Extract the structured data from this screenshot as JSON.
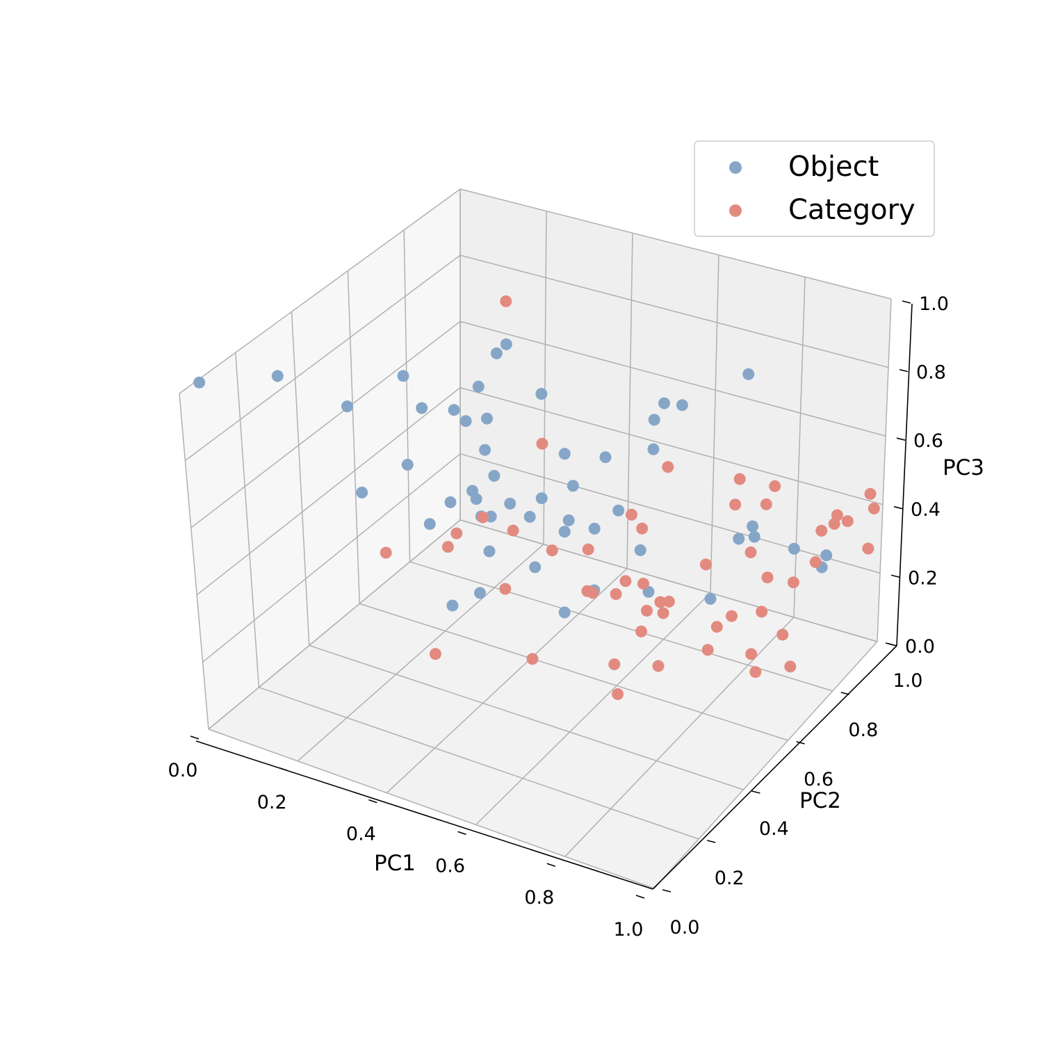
{
  "chart_data": {
    "type": "scatter",
    "projection": "3d",
    "xlabel": "PC1",
    "ylabel": "PC2",
    "zlabel": "PC3",
    "xlim": [
      0,
      1
    ],
    "ylim": [
      0,
      1
    ],
    "zlim": [
      0,
      1
    ],
    "xticks": [
      "0.0",
      "0.2",
      "0.4",
      "0.6",
      "0.8",
      "1.0"
    ],
    "yticks": [
      "0.0",
      "0.2",
      "0.4",
      "0.6",
      "0.8",
      "1.0"
    ],
    "zticks": [
      "0.0",
      "0.2",
      "0.4",
      "0.6",
      "0.8",
      "1.0"
    ],
    "grid": true,
    "legend_position": "top-right",
    "series": [
      {
        "name": "Object",
        "color": "#86a6c8",
        "points": [
          [
            0.0,
            0.07,
            0.99
          ],
          [
            0.07,
            0.23,
            0.95
          ],
          [
            0.17,
            0.31,
            0.86
          ],
          [
            0.18,
            0.5,
            0.83
          ],
          [
            0.25,
            0.45,
            0.8
          ],
          [
            0.27,
            0.63,
            0.75
          ],
          [
            0.28,
            0.72,
            0.82
          ],
          [
            0.28,
            0.52,
            0.76
          ],
          [
            0.27,
            0.58,
            0.68
          ],
          [
            0.3,
            0.61,
            0.68
          ],
          [
            0.33,
            0.55,
            0.64
          ],
          [
            0.35,
            0.38,
            0.61
          ],
          [
            0.37,
            0.5,
            0.49
          ],
          [
            0.4,
            0.38,
            0.67
          ],
          [
            0.42,
            0.49,
            0.56
          ],
          [
            0.43,
            0.6,
            0.82
          ],
          [
            0.44,
            0.33,
            0.41
          ],
          [
            0.47,
            0.62,
            0.64
          ],
          [
            0.47,
            0.48,
            0.55
          ],
          [
            0.5,
            0.6,
            0.57
          ],
          [
            0.52,
            0.53,
            0.49
          ],
          [
            0.54,
            0.66,
            0.63
          ],
          [
            0.56,
            0.58,
            0.48
          ],
          [
            0.57,
            0.66,
            0.48
          ],
          [
            0.6,
            0.75,
            0.7
          ],
          [
            0.62,
            0.47,
            0.4
          ],
          [
            0.67,
            0.57,
            0.47
          ],
          [
            0.7,
            0.55,
            0.37
          ],
          [
            0.65,
            0.7,
            0.81
          ],
          [
            0.72,
            0.92,
            0.75
          ],
          [
            0.82,
            0.59,
            0.37
          ],
          [
            0.84,
            0.67,
            0.5
          ],
          [
            0.85,
            0.71,
            0.51
          ],
          [
            0.86,
            0.7,
            0.49
          ],
          [
            0.9,
            0.8,
            0.39
          ],
          [
            0.95,
            0.83,
            0.33
          ],
          [
            0.35,
            0.55,
            0.57
          ],
          [
            0.36,
            0.48,
            0.5
          ],
          [
            0.4,
            0.44,
            0.44
          ],
          [
            0.44,
            0.58,
            0.52
          ],
          [
            0.49,
            0.6,
            0.46
          ],
          [
            0.52,
            0.41,
            0.47
          ],
          [
            0.58,
            0.42,
            0.35
          ],
          [
            0.61,
            0.73,
            0.63
          ],
          [
            0.63,
            0.81,
            0.71
          ],
          [
            0.4,
            0.29,
            0.38
          ],
          [
            0.32,
            0.53,
            0.5
          ],
          [
            0.29,
            0.4,
            0.5
          ],
          [
            0.22,
            0.44,
            0.62
          ],
          [
            0.3,
            0.65,
            0.85
          ],
          [
            1.0,
            0.75,
            0.45
          ],
          [
            0.2,
            0.3,
            0.62
          ]
        ]
      },
      {
        "name": "Category",
        "color": "#e38a80",
        "points": [
          [
            0.28,
            0.72,
            0.95
          ],
          [
            0.35,
            0.4,
            0.5
          ],
          [
            0.34,
            0.52,
            0.46
          ],
          [
            0.39,
            0.67,
            0.6
          ],
          [
            0.42,
            0.5,
            0.47
          ],
          [
            0.44,
            0.43,
            0.35
          ],
          [
            0.48,
            0.55,
            0.4
          ],
          [
            0.54,
            0.59,
            0.4
          ],
          [
            0.56,
            0.55,
            0.31
          ],
          [
            0.58,
            0.74,
            0.37
          ],
          [
            0.6,
            0.66,
            0.48
          ],
          [
            0.62,
            0.56,
            0.32
          ],
          [
            0.65,
            0.62,
            0.32
          ],
          [
            0.66,
            0.7,
            0.62
          ],
          [
            0.68,
            0.58,
            0.28
          ],
          [
            0.7,
            0.6,
            0.3
          ],
          [
            0.7,
            0.52,
            0.27
          ],
          [
            0.72,
            0.6,
            0.31
          ],
          [
            0.74,
            0.84,
            0.43
          ],
          [
            0.75,
            0.7,
            0.36
          ],
          [
            0.76,
            0.82,
            0.53
          ],
          [
            0.78,
            0.9,
            0.4
          ],
          [
            0.8,
            0.8,
            0.34
          ],
          [
            0.82,
            0.86,
            0.5
          ],
          [
            0.82,
            0.62,
            0.26
          ],
          [
            0.84,
            0.8,
            0.28
          ],
          [
            0.86,
            0.74,
            0.23
          ],
          [
            0.88,
            0.84,
            0.25
          ],
          [
            0.9,
            0.92,
            0.35
          ],
          [
            0.92,
            0.95,
            0.38
          ],
          [
            0.93,
            0.84,
            0.33
          ],
          [
            0.95,
            0.88,
            0.42
          ],
          [
            0.96,
            0.92,
            0.4
          ],
          [
            0.98,
            0.98,
            0.44
          ],
          [
            1.0,
            0.96,
            0.42
          ],
          [
            0.9,
            0.62,
            0.21
          ],
          [
            0.88,
            0.68,
            0.1
          ],
          [
            0.95,
            0.7,
            0.13
          ],
          [
            0.92,
            0.72,
            0.2
          ],
          [
            0.98,
            0.98,
            0.28
          ],
          [
            0.6,
            0.5,
            0.36
          ],
          [
            0.75,
            0.5,
            0.2
          ],
          [
            0.8,
            0.62,
            0.18
          ],
          [
            0.7,
            0.42,
            0.15
          ],
          [
            0.55,
            0.34,
            0.25
          ],
          [
            0.26,
            0.28,
            0.48
          ],
          [
            0.3,
            0.45,
            0.4
          ],
          [
            0.68,
            0.65,
            0.22
          ],
          [
            0.78,
            0.76,
            0.17
          ],
          [
            0.34,
            0.32,
            0.18
          ],
          [
            0.62,
            0.6,
            0.33
          ],
          [
            0.66,
            0.48,
            0.18
          ]
        ]
      }
    ]
  }
}
